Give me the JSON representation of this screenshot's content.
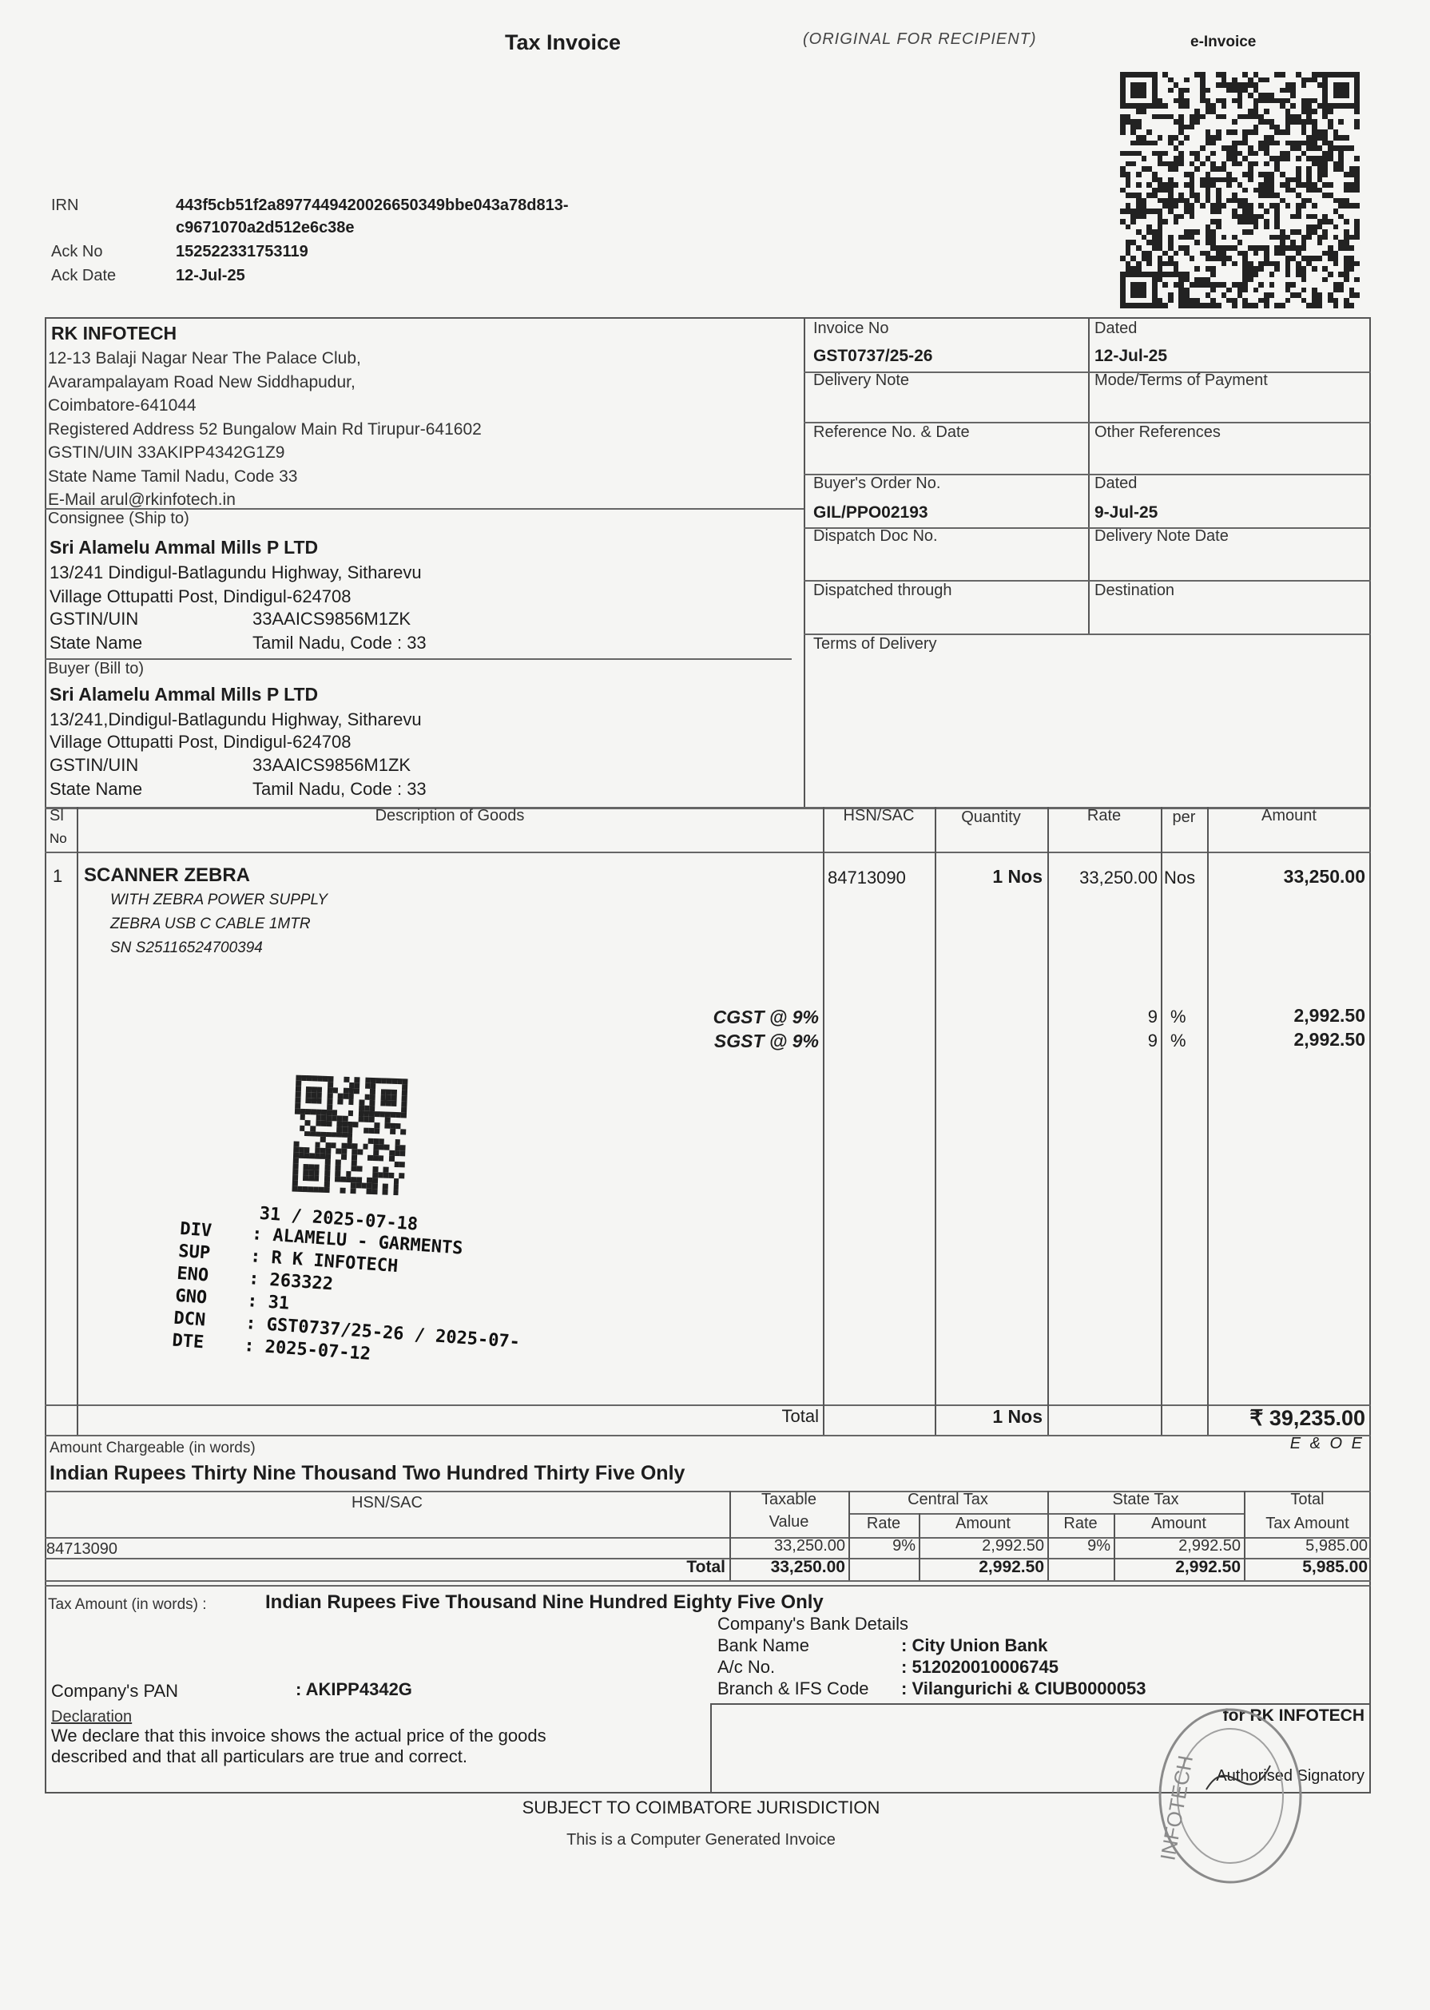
{
  "header": {
    "title": "Tax Invoice",
    "copy": "(ORIGINAL FOR RECIPIENT)",
    "einvoice": "e-Invoice"
  },
  "einvoice_info": {
    "irn_label": "IRN",
    "irn_1": "443f5cb51f2a8977449420026650349bbe043a78d813-",
    "irn_2": "c9671070a2d512e6c38e",
    "ack_no_label": "Ack No",
    "ack_no": "152522331753119",
    "ack_date_label": "Ack Date",
    "ack_date": "12-Jul-25"
  },
  "seller": {
    "name": "RK INFOTECH",
    "lines": [
      "12-13 Balaji Nagar Near The Palace Club,",
      "Avarampalayam Road New Siddhapudur,",
      "Coimbatore-641044",
      "Registered Address 52 Bungalow Main Rd Tirupur-641602",
      "GSTIN/UIN  33AKIPP4342G1Z9",
      "State Name    Tamil Nadu, Code   33",
      "E-Mail   arul@rkinfotech.in"
    ]
  },
  "consignee": {
    "label": "Consignee (Ship to)",
    "name": "Sri Alamelu Ammal Mills P LTD",
    "addr1": "13/241 Dindigul-Batlagundu Highway, Sitharevu",
    "addr2": "Village Ottupatti Post, Dindigul-624708",
    "gstin_label": "GSTIN/UIN",
    "gstin": "33AAICS9856M1ZK",
    "state_label": "State Name",
    "state": "Tamil Nadu, Code : 33"
  },
  "buyer": {
    "label": "Buyer (Bill to)",
    "name": "Sri Alamelu Ammal Mills P LTD",
    "addr1": "13/241,Dindigul-Batlagundu Highway, Sitharevu",
    "addr2": "Village Ottupatti Post, Dindigul-624708",
    "gstin_label": "GSTIN/UIN",
    "gstin": "33AAICS9856M1ZK",
    "state_label": "State Name",
    "state": "Tamil Nadu, Code : 33"
  },
  "details": {
    "invoice_no_label": "Invoice No",
    "invoice_no": "GST0737/25-26",
    "dated_label": "Dated",
    "dated": "12-Jul-25",
    "delivery_note_label": "Delivery Note",
    "mode_label": "Mode/Terms of Payment",
    "reference_label": "Reference No. & Date",
    "other_ref_label": "Other References",
    "buyers_order_label": "Buyer's Order No.",
    "buyers_order": "GIL/PPO02193",
    "order_dated_label": "Dated",
    "order_dated": "9-Jul-25",
    "dispatch_doc_label": "Dispatch Doc No.",
    "delivery_note_date_label": "Delivery Note Date",
    "dispatched_through_label": "Dispatched through",
    "destination_label": "Destination",
    "terms_label": "Terms of Delivery"
  },
  "items": {
    "headers": {
      "sl": "Sl",
      "no": "No",
      "desc": "Description of Goods",
      "hsn": "HSN/SAC",
      "qty": "Quantity",
      "rate": "Rate",
      "per": "per",
      "amount": "Amount"
    },
    "row": {
      "sl": "1",
      "name": "SCANNER ZEBRA",
      "sub": [
        "WITH ZEBRA POWER SUPPLY",
        "ZEBRA USB C CABLE 1MTR",
        "SN S25116524700394"
      ],
      "hsn": "84713090",
      "qty": "1 Nos",
      "rate": "33,250.00",
      "per": "Nos",
      "amount": "33,250.00"
    },
    "cgst": {
      "label": "CGST @ 9%",
      "rate": "9",
      "pct": "%",
      "amount": "2,992.50"
    },
    "sgst": {
      "label": "SGST @ 9%",
      "rate": "9",
      "pct": "%",
      "amount": "2,992.50"
    },
    "total_label": "Total",
    "total_qty": "1 Nos",
    "total_amount": "₹ 39,235.00"
  },
  "stamp": {
    "line0": "31 / 2025-07-18",
    "rows": [
      [
        "DIV",
        ": ALAMELU - GARMENTS"
      ],
      [
        "SUP",
        ": R K INFOTECH"
      ],
      [
        "ENO",
        ": 263322"
      ],
      [
        "GNO",
        ": 31"
      ],
      [
        "DCN",
        ": GST0737/25-26 / 2025-07-"
      ],
      [
        "DTE",
        ": 2025-07-12"
      ]
    ]
  },
  "amount_words": {
    "label": "Amount Chargeable (in words)",
    "eoe": "E & O E",
    "value": "Indian Rupees Thirty Nine Thousand Two Hundred Thirty Five Only"
  },
  "tax_table": {
    "h_hsn": "HSN/SAC",
    "h_taxable": "Taxable",
    "h_value": "Value",
    "h_central": "Central Tax",
    "h_state": "State Tax",
    "h_rate": "Rate",
    "h_amount": "Amount",
    "h_total": "Total",
    "h_total_tax": "Tax Amount",
    "row": {
      "hsn": "84713090",
      "taxable": "33,250.00",
      "c_rate": "9%",
      "c_amt": "2,992.50",
      "s_rate": "9%",
      "s_amt": "2,992.50",
      "total": "5,985.00"
    },
    "total": {
      "label": "Total",
      "taxable": "33,250.00",
      "c_amt": "2,992.50",
      "s_amt": "2,992.50",
      "total": "5,985.00"
    }
  },
  "tax_words": {
    "label": "Tax Amount (in words)  :",
    "value": "Indian Rupees Five Thousand Nine Hundred Eighty Five Only"
  },
  "bank": {
    "title": "Company's Bank Details",
    "name_label": "Bank Name",
    "name": ": City Union Bank",
    "ac_label": "A/c No.",
    "ac": ": 512020010006745",
    "branch_label": "Branch & IFS Code",
    "branch": ": Vilangurichi & CIUB0000053"
  },
  "pan": {
    "label": "Company's PAN",
    "value": ":   AKIPP4342G"
  },
  "declaration": {
    "label": "Declaration",
    "line1": "We declare that this invoice shows the actual price of the goods",
    "line2": "described and that all particulars are true and correct."
  },
  "signature": {
    "for": "for RK INFOTECH",
    "label": "Authorised Signatory",
    "seal": "INFOTECH"
  },
  "footer": {
    "jurisdiction": "SUBJECT TO COIMBATORE JURISDICTION",
    "generated": "This is a Computer Generated Invoice"
  }
}
